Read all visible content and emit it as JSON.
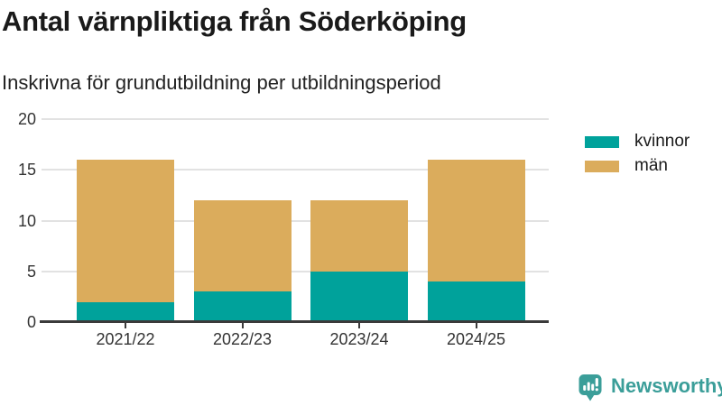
{
  "title": "Antal värnpliktiga från Söderköping",
  "subtitle": "Inskrivna för grundutbildning per utbildningsperiod",
  "chart_data": {
    "type": "bar",
    "stacked": true,
    "title": "Antal värnpliktiga från Söderköping",
    "subtitle": "Inskrivna för grundutbildning per utbildningsperiod",
    "categories": [
      "2021/22",
      "2022/23",
      "2023/24",
      "2024/25"
    ],
    "series": [
      {
        "name": "kvinnor",
        "color": "#00a29b",
        "values": [
          2,
          3,
          5,
          4
        ]
      },
      {
        "name": "män",
        "color": "#dbac5c",
        "values": [
          14,
          9,
          7,
          12
        ]
      }
    ],
    "stack_totals": [
      16,
      12,
      12,
      16
    ],
    "xlabel": "",
    "ylabel": "",
    "ylim": [
      0,
      20
    ],
    "yticks": [
      0,
      5,
      10,
      15,
      20
    ],
    "grid": true,
    "legend_position": "right-top"
  },
  "legend": {
    "items": [
      {
        "label": "kvinnor",
        "color": "#00a29b"
      },
      {
        "label": "män",
        "color": "#dbac5c"
      }
    ]
  },
  "branding": {
    "logo_text": "Newsworthy",
    "logo_color": "#3b9e99",
    "logo_icon": "bar-chart-speech-bubble-icon"
  },
  "colors": {
    "axis": "#3a3a3a",
    "gridline": "#e2e2e2",
    "title_text": "#1a1a1a",
    "tick_text": "#333333"
  }
}
